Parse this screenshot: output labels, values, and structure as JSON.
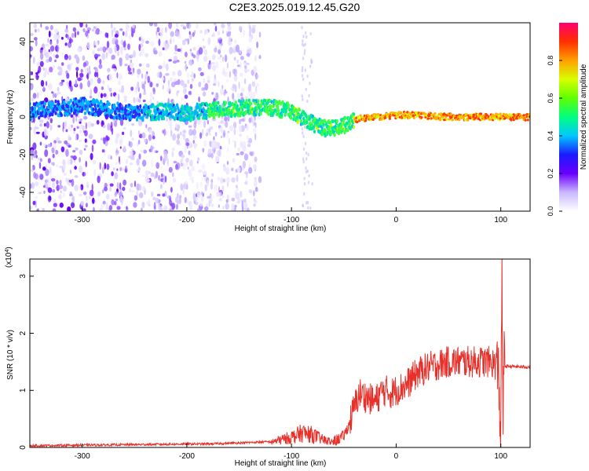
{
  "title": "C2E3.2025.019.12.45.G20",
  "chart_data": [
    {
      "type": "heatmap",
      "xlabel": "Height of straight line (km)",
      "ylabel": "Frequency (Hz)",
      "xlim": [
        -350,
        128
      ],
      "ylim": [
        -50,
        50
      ],
      "xticks": [
        -300,
        -200,
        -100,
        0,
        100
      ],
      "yticks": [
        -40,
        -20,
        0,
        20,
        40
      ],
      "colorbar": {
        "label": "Normalized spectral amplitude",
        "range": [
          0,
          1
        ],
        "ticks": [
          0.0,
          0.2,
          0.4,
          0.6,
          0.8
        ],
        "colormap": [
          "#ffffff",
          "#c9b8ff",
          "#6a00ff",
          "#1a1aff",
          "#00c8ff",
          "#00ff80",
          "#b0ff00",
          "#ffc000",
          "#ff4000",
          "#ff0060"
        ]
      },
      "signal_track": {
        "description_points": [
          [
            -350,
            3
          ],
          [
            -300,
            6
          ],
          [
            -250,
            2
          ],
          [
            -220,
            3
          ],
          [
            -200,
            2
          ],
          [
            -170,
            4
          ],
          [
            -140,
            5
          ],
          [
            -120,
            5
          ],
          [
            -100,
            3
          ],
          [
            -85,
            -2
          ],
          [
            -70,
            -6
          ],
          [
            -55,
            -6
          ],
          [
            -45,
            -3
          ],
          [
            -35,
            -1
          ],
          [
            -20,
            0
          ],
          [
            0,
            1
          ],
          [
            20,
            1
          ],
          [
            50,
            0
          ],
          [
            80,
            0
          ],
          [
            100,
            0
          ],
          [
            128,
            0
          ]
        ],
        "noise_x_range": [
          -350,
          -160
        ]
      }
    },
    {
      "type": "line",
      "xlabel": "Height of straight line (km)",
      "ylabel": "SNR (10 * v/v)",
      "ylabel_scale": "(x10",
      "ylabel_exponent": "4",
      "xlim": [
        -350,
        128
      ],
      "ylim": [
        0,
        3.3
      ],
      "xticks": [
        -300,
        -200,
        -100,
        0,
        100
      ],
      "yticks": [
        0,
        1,
        2,
        3
      ],
      "color": "#e8302a",
      "series": [
        {
          "x": [
            -350,
            -300,
            -250,
            -200,
            -180,
            -150,
            -120,
            -110,
            -100,
            -90,
            -80,
            -70,
            -60,
            -50,
            -45,
            -40,
            -35,
            -30,
            -25,
            -20,
            -15,
            -10,
            -5,
            0,
            10,
            20,
            30,
            40,
            50,
            60,
            70,
            80,
            90,
            95,
            98,
            100,
            101,
            102,
            103,
            104,
            105,
            110,
            120,
            128
          ],
          "y": [
            0.03,
            0.04,
            0.05,
            0.06,
            0.06,
            0.08,
            0.1,
            0.15,
            0.2,
            0.28,
            0.25,
            0.15,
            0.1,
            0.2,
            0.4,
            0.7,
            0.95,
            0.9,
            0.85,
            0.8,
            0.95,
            1.0,
            0.95,
            1.0,
            1.1,
            1.3,
            1.4,
            1.45,
            1.5,
            1.5,
            1.5,
            1.5,
            1.5,
            1.45,
            1.3,
            0.1,
            3.3,
            0.3,
            1.5,
            1.45,
            1.42,
            1.42,
            1.41,
            1.41
          ]
        }
      ]
    }
  ]
}
